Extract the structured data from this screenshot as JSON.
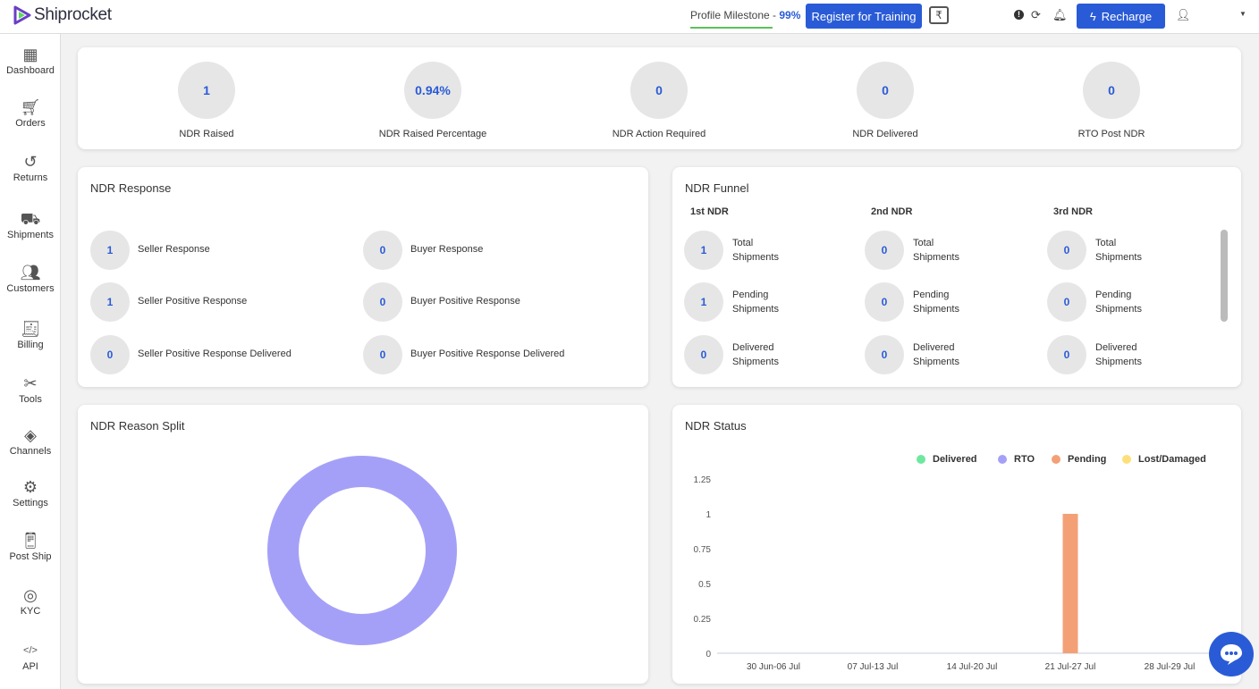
{
  "header": {
    "brand": "Shiprocket",
    "milestone_label": "Profile Milestone - ",
    "milestone_value": "99%",
    "register_label": "Register for Training",
    "recharge_label": "Recharge"
  },
  "sidebar": {
    "items": [
      {
        "label": "Dashboard",
        "icon": "dashboard-icon"
      },
      {
        "label": "Orders",
        "icon": "cart-icon"
      },
      {
        "label": "Returns",
        "icon": "returns-icon"
      },
      {
        "label": "Shipments",
        "icon": "truck-icon"
      },
      {
        "label": "Customers",
        "icon": "users-icon"
      },
      {
        "label": "Billing",
        "icon": "invoice-icon"
      },
      {
        "label": "Tools",
        "icon": "tools-icon"
      },
      {
        "label": "Channels",
        "icon": "layers-icon"
      },
      {
        "label": "Settings",
        "icon": "gear-icon"
      },
      {
        "label": "Post Ship",
        "icon": "post-ship-icon"
      },
      {
        "label": "KYC",
        "icon": "fingerprint-icon"
      },
      {
        "label": "API",
        "icon": "code-icon"
      }
    ]
  },
  "stats": [
    {
      "value": "1",
      "label": "NDR Raised"
    },
    {
      "value": "0.94%",
      "label": "NDR Raised Percentage"
    },
    {
      "value": "0",
      "label": "NDR Action Required"
    },
    {
      "value": "0",
      "label": "NDR Delivered"
    },
    {
      "value": "0",
      "label": "RTO Post NDR"
    }
  ],
  "response": {
    "title": "NDR Response",
    "items": [
      {
        "value": "1",
        "label": "Seller Response"
      },
      {
        "value": "0",
        "label": "Buyer Response"
      },
      {
        "value": "1",
        "label": "Seller Positive Response"
      },
      {
        "value": "0",
        "label": "Buyer Positive Response"
      },
      {
        "value": "0",
        "label": "Seller Positive Response Delivered"
      },
      {
        "value": "0",
        "label": "Buyer Positive Response Delivered"
      }
    ]
  },
  "funnel": {
    "title": "NDR Funnel",
    "columns": [
      {
        "heading": "1st NDR",
        "rows": [
          {
            "value": "1",
            "l1": "Total",
            "l2": "Shipments"
          },
          {
            "value": "1",
            "l1": "Pending",
            "l2": "Shipments"
          },
          {
            "value": "0",
            "l1": "Delivered",
            "l2": "Shipments"
          }
        ]
      },
      {
        "heading": "2nd NDR",
        "rows": [
          {
            "value": "0",
            "l1": "Total",
            "l2": "Shipments"
          },
          {
            "value": "0",
            "l1": "Pending",
            "l2": "Shipments"
          },
          {
            "value": "0",
            "l1": "Delivered",
            "l2": "Shipments"
          }
        ]
      },
      {
        "heading": "3rd NDR",
        "rows": [
          {
            "value": "0",
            "l1": "Total",
            "l2": "Shipments"
          },
          {
            "value": "0",
            "l1": "Pending",
            "l2": "Shipments"
          },
          {
            "value": "0",
            "l1": "Delivered",
            "l2": "Shipments"
          }
        ]
      }
    ]
  },
  "chart_data": [
    {
      "type": "pie",
      "title": "NDR Reason Split",
      "style": "donut",
      "slices": [
        {
          "value": 1,
          "color": "#a5a0f7"
        }
      ]
    },
    {
      "type": "bar",
      "title": "NDR Status",
      "stacked": true,
      "legend": "top-right",
      "categories": [
        "30 Jun-06 Jul",
        "07 Jul-13 Jul",
        "14 Jul-20 Jul",
        "21 Jul-27 Jul",
        "28 Jul-29 Jul"
      ],
      "yticks": [
        "0",
        "0.25",
        "0.5",
        "0.75",
        "1",
        "1.25"
      ],
      "ylim": [
        0,
        1.25
      ],
      "series": [
        {
          "name": "Delivered",
          "color": "#6ee8a0",
          "values": [
            0,
            0,
            0,
            0,
            0
          ]
        },
        {
          "name": "RTO",
          "color": "#a5a0f7",
          "values": [
            0,
            0,
            0,
            0,
            0
          ]
        },
        {
          "name": "Pending",
          "color": "#f4a077",
          "values": [
            0,
            0,
            0,
            1,
            0
          ]
        },
        {
          "name": "Lost/Damaged",
          "color": "#fde07a",
          "values": [
            0,
            0,
            0,
            0,
            0
          ]
        }
      ]
    }
  ]
}
